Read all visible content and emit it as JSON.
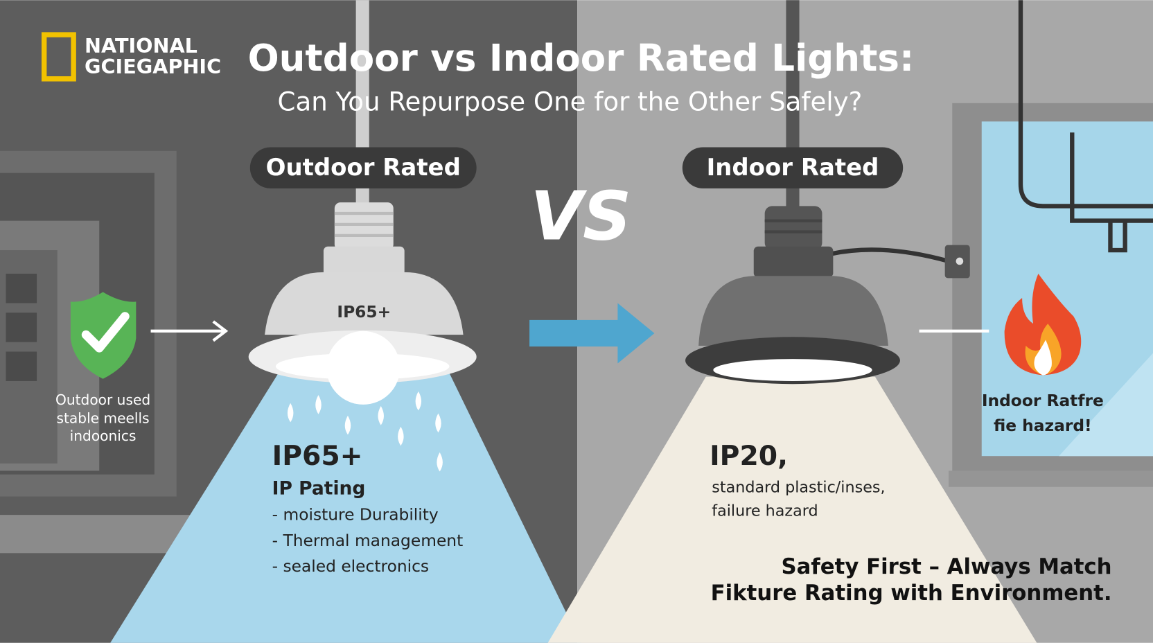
{
  "logo": {
    "line1": "NATIONAL",
    "line2": "GCIEGAPHIC"
  },
  "header": {
    "title": "Outdoor vs Indoor Rated Lights:",
    "subtitle": "Can You Repurpose One for the Other Safely?"
  },
  "vs": "VS",
  "outdoor": {
    "badge": "Outdoor Rated",
    "fixture_label": "IP65+",
    "note": [
      "Outdoor used",
      "stable meells",
      "indoonics"
    ],
    "rating": "IP65+",
    "rating_caption": "IP Pating",
    "features": [
      "- moisture Durability",
      "- Thermal management",
      "- sealed electronics"
    ]
  },
  "indoor": {
    "badge": "Indoor Rated",
    "note": [
      "Indoor Ratfre",
      "fie hazard!"
    ],
    "rating": "IP20,",
    "details": [
      "standard plastic/inses,",
      "failure hazard"
    ]
  },
  "footer": [
    "Safety First – Always Match",
    "Fikture Rating with Environment."
  ]
}
